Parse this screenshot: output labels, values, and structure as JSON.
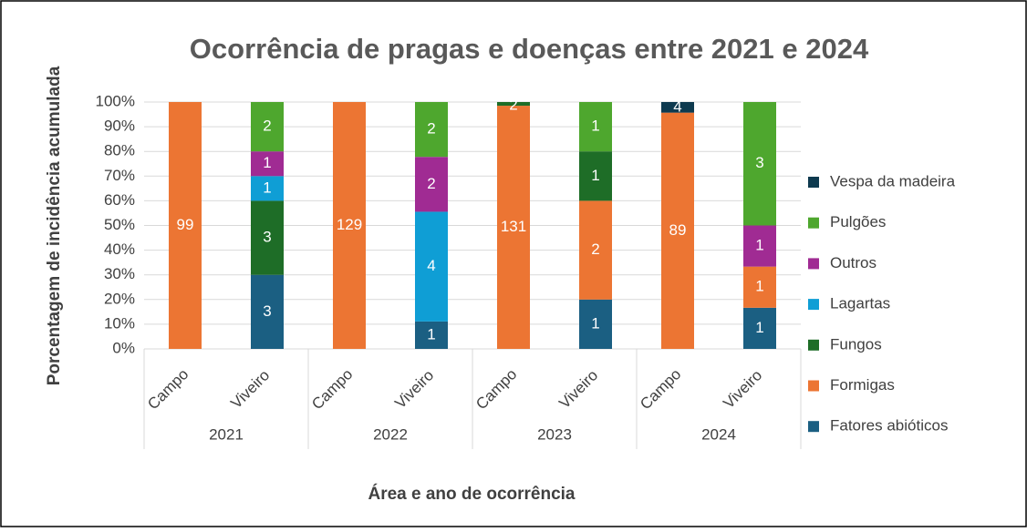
{
  "chart_data": {
    "type": "bar",
    "stacked": "percent",
    "title": "Ocorrência de pragas e doenças entre 2021 e 2024",
    "x_label": "Área e ano de ocorrência",
    "y_label": "Porcentagem de incidência acumulada",
    "categories": [
      "Campo",
      "Viveiro",
      "Campo",
      "Viveiro",
      "Campo",
      "Viveiro",
      "Campo",
      "Viveiro"
    ],
    "groups": [
      "2021",
      "2022",
      "2023",
      "2024"
    ],
    "series": [
      {
        "name": "Fatores abióticos",
        "color": "#1b5f82",
        "values": [
          null,
          3,
          null,
          1,
          null,
          1,
          null,
          1
        ]
      },
      {
        "name": "Formigas",
        "color": "#ec7533",
        "values": [
          99,
          null,
          129,
          null,
          131,
          2,
          89,
          1
        ]
      },
      {
        "name": "Fungos",
        "color": "#1e6d27",
        "values": [
          null,
          3,
          null,
          null,
          2,
          1,
          null,
          null
        ]
      },
      {
        "name": "Lagartas",
        "color": "#0f9ed5",
        "values": [
          null,
          1,
          null,
          4,
          null,
          null,
          null,
          null
        ]
      },
      {
        "name": "Outros",
        "color": "#a02b93",
        "values": [
          null,
          1,
          null,
          2,
          null,
          null,
          null,
          1
        ]
      },
      {
        "name": "Pulgões",
        "color": "#4ea72e",
        "values": [
          null,
          2,
          null,
          2,
          null,
          1,
          null,
          3
        ]
      },
      {
        "name": "Vespa da madeira",
        "color": "#0e3a4f",
        "values": [
          null,
          null,
          null,
          null,
          null,
          null,
          4,
          null
        ]
      }
    ],
    "ylim": [
      0,
      100
    ],
    "yticks": [
      {
        "value": 0,
        "label": "0%"
      },
      {
        "value": 10,
        "label": "10%"
      },
      {
        "value": 20,
        "label": "20%"
      },
      {
        "value": 30,
        "label": "30%"
      },
      {
        "value": 40,
        "label": "40%"
      },
      {
        "value": 50,
        "label": "50%"
      },
      {
        "value": 60,
        "label": "60%"
      },
      {
        "value": 70,
        "label": "70%"
      },
      {
        "value": 80,
        "label": "80%"
      },
      {
        "value": 90,
        "label": "90%"
      },
      {
        "value": 100,
        "label": "100%"
      }
    ],
    "grid": true,
    "legend": "right"
  }
}
